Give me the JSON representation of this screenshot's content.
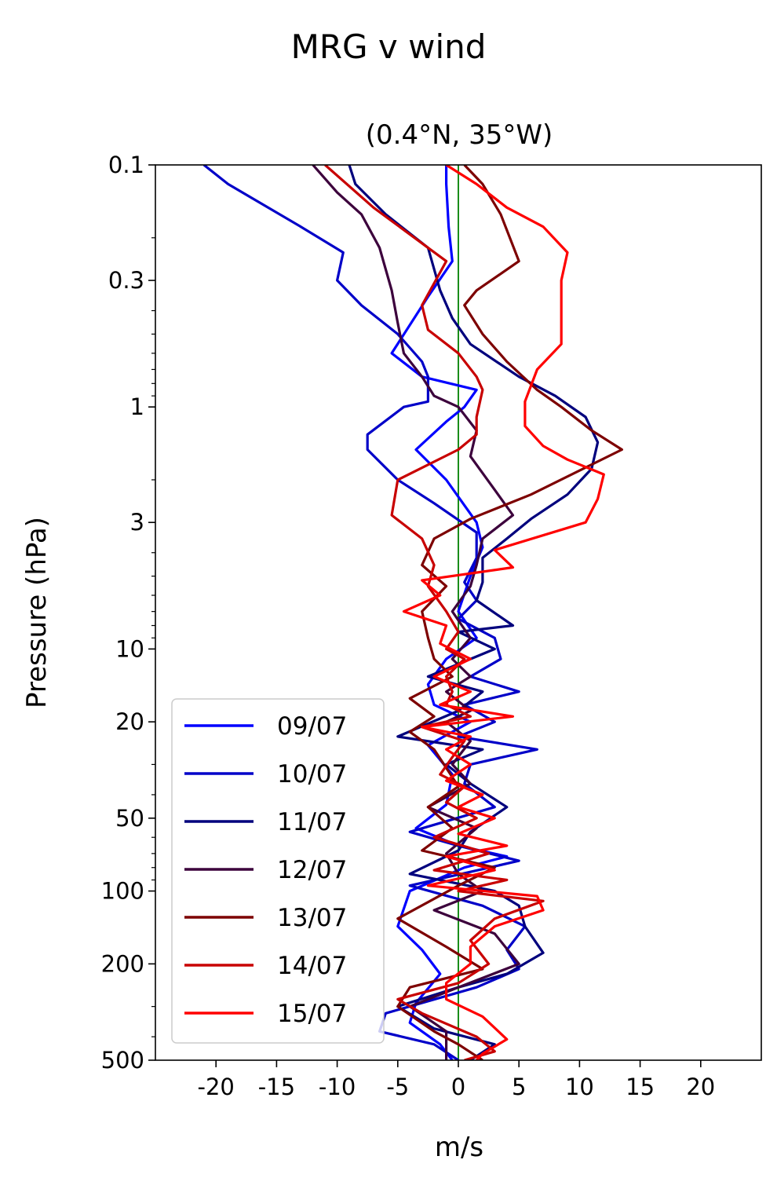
{
  "chart_data": {
    "type": "line",
    "title": "MRG v wind",
    "subtitle": "(0.4°N, 35°W)",
    "xlabel": "m/s",
    "ylabel": "Pressure (hPa)",
    "xlim": [
      -25,
      25
    ],
    "ylim": [
      500,
      0.1
    ],
    "y_scale": "log",
    "y_inverted": true,
    "x_ticks": [
      -20,
      -15,
      -10,
      -5,
      0,
      5,
      10,
      15,
      20
    ],
    "x_tick_labels": [
      "-20",
      "-15",
      "-10",
      "-5",
      "0",
      "5",
      "10",
      "15",
      "20"
    ],
    "y_ticks": [
      0.1,
      0.3,
      1,
      3,
      10,
      20,
      50,
      100,
      200,
      500
    ],
    "y_tick_labels": [
      "0.1",
      "0.3",
      "1",
      "3",
      "10",
      "20",
      "50",
      "100",
      "200",
      "500"
    ],
    "grid": false,
    "legend_position": "lower-left",
    "reference_line": {
      "x": 0,
      "color": "#008000"
    },
    "series": [
      {
        "name": "09/07",
        "color": "#0000ff",
        "points": [
          [
            -1,
            0.1
          ],
          [
            -1,
            0.12
          ],
          [
            -0.8,
            0.18
          ],
          [
            -0.5,
            0.25
          ],
          [
            -2.5,
            0.35
          ],
          [
            -5.5,
            0.6
          ],
          [
            -3,
            0.75
          ],
          [
            1.5,
            0.85
          ],
          [
            0.5,
            1.0
          ],
          [
            -1,
            1.15
          ],
          [
            -3.5,
            1.5
          ],
          [
            -1,
            2.0
          ],
          [
            1.5,
            3.0
          ],
          [
            2,
            3.8
          ],
          [
            1,
            5
          ],
          [
            0,
            7
          ],
          [
            1.5,
            9
          ],
          [
            -1,
            11
          ],
          [
            -2.5,
            14
          ],
          [
            -2,
            17
          ],
          [
            1,
            20
          ],
          [
            -2.5,
            25
          ],
          [
            -0.5,
            33
          ],
          [
            -1,
            44
          ],
          [
            -3.5,
            55
          ],
          [
            0,
            65
          ],
          [
            4,
            72
          ],
          [
            0.5,
            80
          ],
          [
            -4,
            100
          ],
          [
            -5,
            140
          ],
          [
            -3,
            175
          ],
          [
            -1.5,
            220
          ],
          [
            -3.5,
            290
          ],
          [
            -4,
            350
          ],
          [
            -1.5,
            430
          ],
          [
            -0.5,
            500
          ]
        ]
      },
      {
        "name": "10/07",
        "color": "#0000c8",
        "points": [
          [
            -21,
            0.1
          ],
          [
            -19,
            0.12
          ],
          [
            -13,
            0.18
          ],
          [
            -9.5,
            0.23
          ],
          [
            -10,
            0.3
          ],
          [
            -8,
            0.38
          ],
          [
            -5,
            0.5
          ],
          [
            -3,
            0.65
          ],
          [
            -2.5,
            0.75
          ],
          [
            -2.5,
            0.95
          ],
          [
            -4.5,
            1.0
          ],
          [
            -7.5,
            1.3
          ],
          [
            -7.5,
            1.5
          ],
          [
            -5,
            2.0
          ],
          [
            -2,
            2.5
          ],
          [
            1.5,
            3.3
          ],
          [
            1.5,
            4.2
          ],
          [
            0.5,
            5.3
          ],
          [
            1.5,
            6.3
          ],
          [
            0,
            7.5
          ],
          [
            3,
            9
          ],
          [
            3.5,
            11
          ],
          [
            1,
            13
          ],
          [
            5,
            15
          ],
          [
            0.5,
            17
          ],
          [
            3,
            20
          ],
          [
            0,
            23
          ],
          [
            6.5,
            26
          ],
          [
            1,
            30
          ],
          [
            0.5,
            36
          ],
          [
            3,
            45
          ],
          [
            -4,
            57
          ],
          [
            0,
            65
          ],
          [
            5,
            75
          ],
          [
            -4,
            95
          ],
          [
            2,
            115
          ],
          [
            5.5,
            140
          ],
          [
            4,
            175
          ],
          [
            5,
            210
          ],
          [
            1.5,
            250
          ],
          [
            -6,
            320
          ],
          [
            -6.5,
            380
          ],
          [
            -2,
            430
          ],
          [
            0,
            500
          ]
        ]
      },
      {
        "name": "11/07",
        "color": "#00007d",
        "points": [
          [
            -9,
            0.1
          ],
          [
            -8.5,
            0.12
          ],
          [
            -6,
            0.16
          ],
          [
            -2.5,
            0.22
          ],
          [
            -1.5,
            0.33
          ],
          [
            -0.5,
            0.43
          ],
          [
            1,
            0.55
          ],
          [
            5,
            0.75
          ],
          [
            8,
            0.9
          ],
          [
            10.5,
            1.1
          ],
          [
            11.5,
            1.4
          ],
          [
            11,
            1.8
          ],
          [
            9,
            2.3
          ],
          [
            6,
            2.9
          ],
          [
            4,
            3.5
          ],
          [
            2,
            4.2
          ],
          [
            2,
            5.3
          ],
          [
            1.5,
            6.3
          ],
          [
            4.5,
            8
          ],
          [
            0,
            8.5
          ],
          [
            3,
            10
          ],
          [
            -2.5,
            13
          ],
          [
            2,
            15
          ],
          [
            0,
            18
          ],
          [
            -5,
            23
          ],
          [
            2,
            26
          ],
          [
            -1,
            30
          ],
          [
            1,
            36
          ],
          [
            4,
            45
          ],
          [
            1,
            57
          ],
          [
            0,
            68
          ],
          [
            -4,
            85
          ],
          [
            3,
            100
          ],
          [
            5,
            115
          ],
          [
            5.5,
            140
          ],
          [
            7,
            180
          ],
          [
            4,
            220
          ],
          [
            0,
            250
          ],
          [
            -5,
            300
          ],
          [
            -2,
            370
          ],
          [
            3,
            430
          ],
          [
            1,
            500
          ]
        ]
      },
      {
        "name": "12/07",
        "color": "#3c003c",
        "points": [
          [
            -12,
            0.1
          ],
          [
            -10,
            0.13
          ],
          [
            -8,
            0.16
          ],
          [
            -6.5,
            0.22
          ],
          [
            -5.5,
            0.33
          ],
          [
            -5,
            0.45
          ],
          [
            -4.5,
            0.6
          ],
          [
            -3,
            0.75
          ],
          [
            -2,
            0.9
          ],
          [
            0,
            1.0
          ],
          [
            1.5,
            1.25
          ],
          [
            1,
            1.6
          ],
          [
            3,
            2.2
          ],
          [
            4.5,
            2.8
          ],
          [
            2,
            3.5
          ],
          [
            1.5,
            4.5
          ],
          [
            1,
            5.5
          ],
          [
            -0.5,
            7
          ],
          [
            1,
            9
          ],
          [
            -0.5,
            11
          ],
          [
            1,
            13
          ],
          [
            -1,
            15
          ],
          [
            1,
            18
          ],
          [
            -1,
            20
          ],
          [
            1,
            24
          ],
          [
            -0.5,
            30
          ],
          [
            1,
            36
          ],
          [
            -2.5,
            45
          ],
          [
            1.5,
            55
          ],
          [
            -1,
            70
          ],
          [
            0,
            85
          ],
          [
            2,
            100
          ],
          [
            -2,
            120
          ],
          [
            3,
            150
          ],
          [
            5,
            200
          ],
          [
            0,
            250
          ],
          [
            -4,
            300
          ],
          [
            -1,
            380
          ],
          [
            -1,
            500
          ]
        ]
      },
      {
        "name": "13/07",
        "color": "#7d0000",
        "points": [
          [
            0.5,
            0.1
          ],
          [
            2,
            0.12
          ],
          [
            3.5,
            0.16
          ],
          [
            5,
            0.25
          ],
          [
            1.5,
            0.33
          ],
          [
            0.5,
            0.38
          ],
          [
            2,
            0.5
          ],
          [
            4,
            0.65
          ],
          [
            6.5,
            0.85
          ],
          [
            8.5,
            1.0
          ],
          [
            11,
            1.25
          ],
          [
            13.5,
            1.5
          ],
          [
            6,
            2.3
          ],
          [
            1,
            2.9
          ],
          [
            -2,
            3.5
          ],
          [
            -3,
            4.5
          ],
          [
            -1,
            5.5
          ],
          [
            -3,
            7
          ],
          [
            -2.5,
            9
          ],
          [
            -2,
            11
          ],
          [
            -0.5,
            13
          ],
          [
            -4,
            16
          ],
          [
            -2,
            19
          ],
          [
            -4,
            22
          ],
          [
            -2,
            26
          ],
          [
            -1,
            31
          ],
          [
            0,
            37
          ],
          [
            -2.5,
            45
          ],
          [
            -0.5,
            55
          ],
          [
            -3,
            68
          ],
          [
            3,
            80
          ],
          [
            0,
            95
          ],
          [
            -5,
            130
          ],
          [
            -1,
            170
          ],
          [
            2,
            210
          ],
          [
            -4,
            250
          ],
          [
            -5,
            300
          ],
          [
            -2,
            380
          ],
          [
            0,
            430
          ],
          [
            2,
            500
          ]
        ]
      },
      {
        "name": "14/07",
        "color": "#c80000",
        "points": [
          [
            -11,
            0.1
          ],
          [
            -7,
            0.15
          ],
          [
            -1,
            0.25
          ],
          [
            -3,
            0.38
          ],
          [
            -2.5,
            0.48
          ],
          [
            0,
            0.6
          ],
          [
            1.5,
            0.75
          ],
          [
            2,
            0.85
          ],
          [
            1.5,
            1.1
          ],
          [
            1.5,
            1.3
          ],
          [
            0,
            1.5
          ],
          [
            -5,
            2.0
          ],
          [
            -5.5,
            2.8
          ],
          [
            -3,
            3.5
          ],
          [
            -2,
            4.5
          ],
          [
            -2.5,
            5.5
          ],
          [
            -1,
            7
          ],
          [
            0,
            8.5
          ],
          [
            -1,
            10
          ],
          [
            0.5,
            11
          ],
          [
            -1,
            13
          ],
          [
            -0.5,
            15
          ],
          [
            -1,
            17
          ],
          [
            1,
            19
          ],
          [
            -3,
            21
          ],
          [
            0.5,
            24
          ],
          [
            -0.5,
            28
          ],
          [
            -1.5,
            33
          ],
          [
            0.5,
            37
          ],
          [
            -1,
            43
          ],
          [
            1.5,
            50
          ],
          [
            -2,
            60
          ],
          [
            2.5,
            70
          ],
          [
            -2,
            82
          ],
          [
            4,
            90
          ],
          [
            0,
            100
          ],
          [
            7,
            110
          ],
          [
            3,
            130
          ],
          [
            1,
            160
          ],
          [
            2.5,
            200
          ],
          [
            0,
            240
          ],
          [
            -5,
            280
          ],
          [
            -3,
            320
          ],
          [
            1.5,
            400
          ],
          [
            3,
            460
          ],
          [
            0.5,
            500
          ]
        ]
      },
      {
        "name": "15/07",
        "color": "#ff0000",
        "points": [
          [
            -1,
            0.1
          ],
          [
            1.5,
            0.12
          ],
          [
            4,
            0.15
          ],
          [
            7,
            0.18
          ],
          [
            9,
            0.23
          ],
          [
            8.5,
            0.3
          ],
          [
            8.5,
            0.4
          ],
          [
            8.5,
            0.55
          ],
          [
            6.5,
            0.7
          ],
          [
            5.5,
            0.95
          ],
          [
            5.5,
            1.2
          ],
          [
            7,
            1.45
          ],
          [
            9,
            1.65
          ],
          [
            12,
            1.9
          ],
          [
            11.5,
            2.4
          ],
          [
            10.5,
            3.0
          ],
          [
            3,
            3.9
          ],
          [
            4.5,
            4.6
          ],
          [
            -3,
            5.2
          ],
          [
            -1.5,
            6.0
          ],
          [
            -4.5,
            7.0
          ],
          [
            -1,
            8.0
          ],
          [
            -1.5,
            9.5
          ],
          [
            1,
            11
          ],
          [
            -2,
            13
          ],
          [
            1,
            15
          ],
          [
            -1.5,
            17
          ],
          [
            4.5,
            19
          ],
          [
            -3,
            21
          ],
          [
            1,
            23
          ],
          [
            -1,
            26
          ],
          [
            1,
            30
          ],
          [
            -1,
            35
          ],
          [
            2,
            40
          ],
          [
            0,
            45
          ],
          [
            3,
            50
          ],
          [
            0,
            58
          ],
          [
            4,
            65
          ],
          [
            -1,
            72
          ],
          [
            3,
            82
          ],
          [
            -2.5,
            95
          ],
          [
            6.5,
            105
          ],
          [
            7,
            120
          ],
          [
            3,
            140
          ],
          [
            1,
            170
          ],
          [
            1,
            200
          ],
          [
            -1,
            240
          ],
          [
            -1,
            280
          ],
          [
            2,
            330
          ],
          [
            4,
            410
          ],
          [
            2,
            470
          ],
          [
            1.5,
            500
          ]
        ]
      }
    ]
  }
}
